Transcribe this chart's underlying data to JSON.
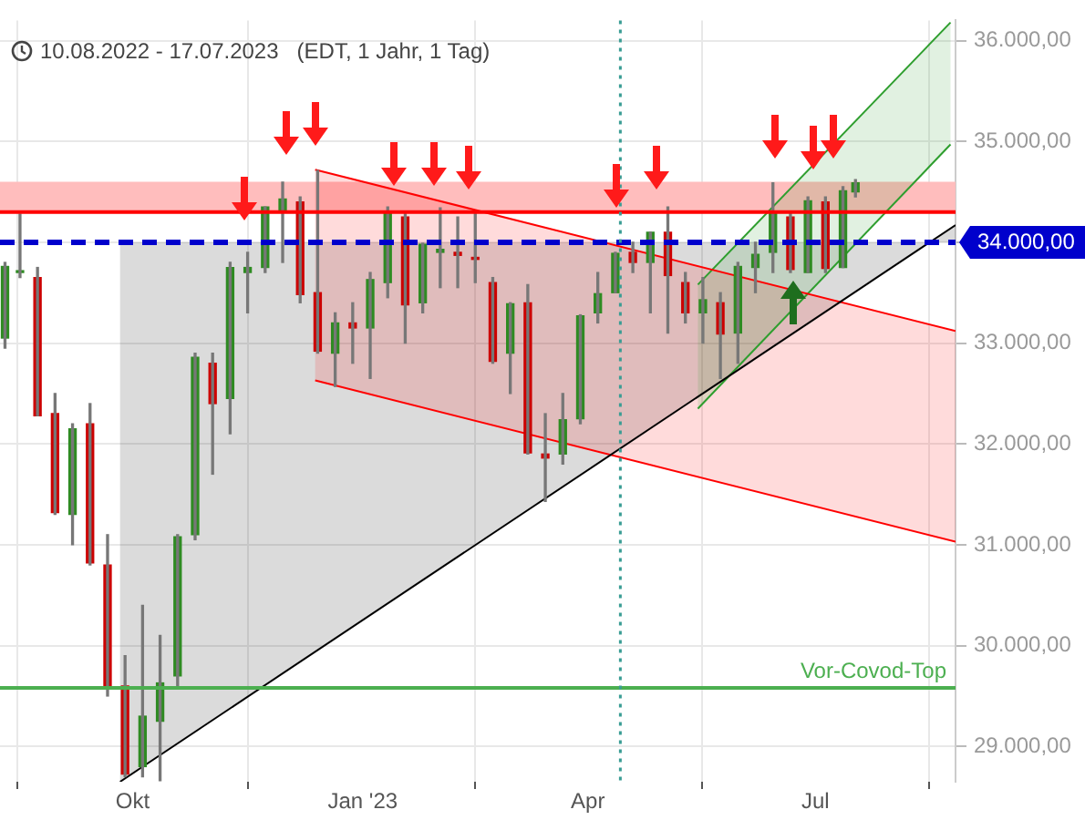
{
  "chart_data": {
    "type": "candlestick",
    "subtitle": "10.08.2022 - 17.07.2023   (EDT, 1 Jahr, 1 Tag)",
    "x": [
      "2022-08-11",
      "2022-08-17",
      "2022-08-24",
      "2022-08-31",
      "2022-09-07",
      "2022-09-14",
      "2022-09-21",
      "2022-09-28",
      "2022-10-05",
      "2022-10-12",
      "2022-10-19",
      "2022-10-26",
      "2022-11-02",
      "2022-11-09",
      "2022-11-16",
      "2022-11-23",
      "2022-11-30",
      "2022-12-07",
      "2022-12-14",
      "2022-12-21",
      "2022-12-28",
      "2023-01-04",
      "2023-01-11",
      "2023-01-18",
      "2023-01-25",
      "2023-02-01",
      "2023-02-08",
      "2023-02-15",
      "2023-02-22",
      "2023-03-01",
      "2023-03-08",
      "2023-03-15",
      "2023-03-22",
      "2023-03-29",
      "2023-04-05",
      "2023-04-12",
      "2023-04-19",
      "2023-04-26",
      "2023-05-03",
      "2023-05-10",
      "2023-05-17",
      "2023-05-24",
      "2023-05-31",
      "2023-06-07",
      "2023-06-14",
      "2023-06-21",
      "2023-06-28",
      "2023-07-05",
      "2023-07-12",
      "2023-07-17"
    ],
    "ohlc": [
      [
        33050,
        33800,
        32950,
        33760
      ],
      [
        33700,
        34280,
        33650,
        33710
      ],
      [
        33650,
        33750,
        32280,
        32280
      ],
      [
        32300,
        32500,
        31300,
        31320
      ],
      [
        31300,
        32200,
        31000,
        32150
      ],
      [
        32200,
        32400,
        30800,
        30820
      ],
      [
        30800,
        31100,
        29500,
        29590
      ],
      [
        29600,
        29900,
        28700,
        28725
      ],
      [
        28800,
        30400,
        28700,
        29300
      ],
      [
        29250,
        30100,
        28660,
        29630
      ],
      [
        29700,
        31100,
        29600,
        31080
      ],
      [
        31100,
        32900,
        31050,
        32860
      ],
      [
        32800,
        32900,
        31700,
        32400
      ],
      [
        32450,
        33800,
        32100,
        33750
      ],
      [
        33700,
        33900,
        33300,
        33750
      ],
      [
        33750,
        34350,
        33700,
        34350
      ],
      [
        34300,
        34595,
        33800,
        34430
      ],
      [
        34400,
        34450,
        33400,
        33480
      ],
      [
        33500,
        34712,
        32900,
        32920
      ],
      [
        32900,
        33300,
        32570,
        33200
      ],
      [
        33200,
        33400,
        32800,
        33150
      ],
      [
        33150,
        33700,
        32650,
        33630
      ],
      [
        33600,
        34350,
        33450,
        34300
      ],
      [
        34250,
        34300,
        33000,
        33380
      ],
      [
        33400,
        33990,
        33300,
        33980
      ],
      [
        33900,
        34340,
        33550,
        33930
      ],
      [
        33900,
        34250,
        33550,
        33870
      ],
      [
        33850,
        34300,
        33600,
        33830
      ],
      [
        33600,
        33650,
        32800,
        32820
      ],
      [
        32900,
        33400,
        32500,
        33390
      ],
      [
        33400,
        33580,
        31900,
        31910
      ],
      [
        31900,
        32300,
        31430,
        31860
      ],
      [
        31900,
        32500,
        31800,
        32240
      ],
      [
        32250,
        33280,
        32200,
        33270
      ],
      [
        33300,
        33700,
        33200,
        33490
      ],
      [
        33500,
        33900,
        33500,
        33890
      ],
      [
        33900,
        34000,
        33700,
        33800
      ],
      [
        33800,
        34100,
        33300,
        34100
      ],
      [
        34100,
        34350,
        33100,
        33670
      ],
      [
        33600,
        33700,
        33200,
        33300
      ],
      [
        33300,
        33650,
        33000,
        33430
      ],
      [
        33400,
        33500,
        32650,
        33090
      ],
      [
        33100,
        33800,
        32800,
        33760
      ],
      [
        33750,
        34000,
        33500,
        33880
      ],
      [
        33900,
        34590,
        33700,
        34300
      ],
      [
        34250,
        34300,
        33700,
        33730
      ],
      [
        33700,
        34450,
        33700,
        34410
      ],
      [
        34400,
        34450,
        33700,
        33740
      ],
      [
        33750,
        34550,
        33750,
        34510
      ],
      [
        34500,
        34620,
        34450,
        34590
      ]
    ],
    "series": [
      {
        "type": "line",
        "color": "#000000",
        "x": [
          "2022-09-26",
          "2023-08-26"
        ],
        "values": [
          28650,
          34170
        ],
        "lower": [
          28650,
          34170
        ],
        "upper": [
          34000,
          34000
        ]
      },
      {
        "type": "line",
        "color": "#ff0000",
        "x": [
          "2022-12-13",
          "2023-08-26"
        ],
        "values": [
          34720,
          33120
        ]
      },
      {
        "type": "line",
        "color": "#ff0000",
        "x": [
          "2022-12-13",
          "2023-08-26"
        ],
        "values": [
          32630,
          31030
        ],
        "lower": [
          32630,
          31030
        ],
        "upper": [
          34720,
          33120
        ]
      },
      {
        "type": "line",
        "color": "#2e9e2e",
        "x": [
          "2023-05-15",
          "2023-08-24"
        ],
        "values": [
          32350,
          34970
        ],
        "lower": [
          32350,
          34970
        ],
        "upper": [
          33580,
          36180
        ]
      },
      {
        "type": "line",
        "color": "#2e9e2e",
        "x": [
          "2023-05-15",
          "2023-08-24"
        ],
        "values": [
          33580,
          36180
        ]
      }
    ],
    "bands": [
      {
        "axis": "y",
        "from": 34300,
        "to": 34600,
        "color": "#ffbdbd"
      }
    ],
    "ref_lines": [
      {
        "axis": "y",
        "value": 34300,
        "color": "#ff0000",
        "line_style": "solid"
      },
      {
        "axis": "y",
        "value": 34000,
        "label": "34.000,00",
        "color": "#0000cc",
        "line_style": "dashed"
      },
      {
        "axis": "y",
        "value": 29580,
        "label": "Vor-Covod-Top",
        "color": "#4caf50",
        "line_style": "solid"
      },
      {
        "axis": "x",
        "value": "2023-04-14",
        "color": "#3a9d94",
        "line_style": "dotted"
      }
    ],
    "xlim": [
      "2022-08-09",
      "2023-08-26"
    ],
    "xticks": [
      {
        "value": "2022-10-01",
        "label": "Okt"
      },
      {
        "value": "2023-01-01",
        "label": "Jan '23"
      },
      {
        "value": "2023-04-01",
        "label": "Apr"
      },
      {
        "value": "2023-07-01",
        "label": "Jul"
      }
    ],
    "ylim": [
      28650,
      36200
    ],
    "yticks": [
      {
        "value": 29000,
        "label": "29.000,00"
      },
      {
        "value": 30000,
        "label": "30.000,00"
      },
      {
        "value": 31000,
        "label": "31.000,00"
      },
      {
        "value": 32000,
        "label": "32.000,00"
      },
      {
        "value": 33000,
        "label": "33.000,00"
      },
      {
        "value": 34000,
        "label": null
      },
      {
        "value": 35000,
        "label": "35.000,00"
      },
      {
        "value": 36000,
        "label": "36.000,00"
      }
    ],
    "grid": true,
    "legend": false
  }
}
